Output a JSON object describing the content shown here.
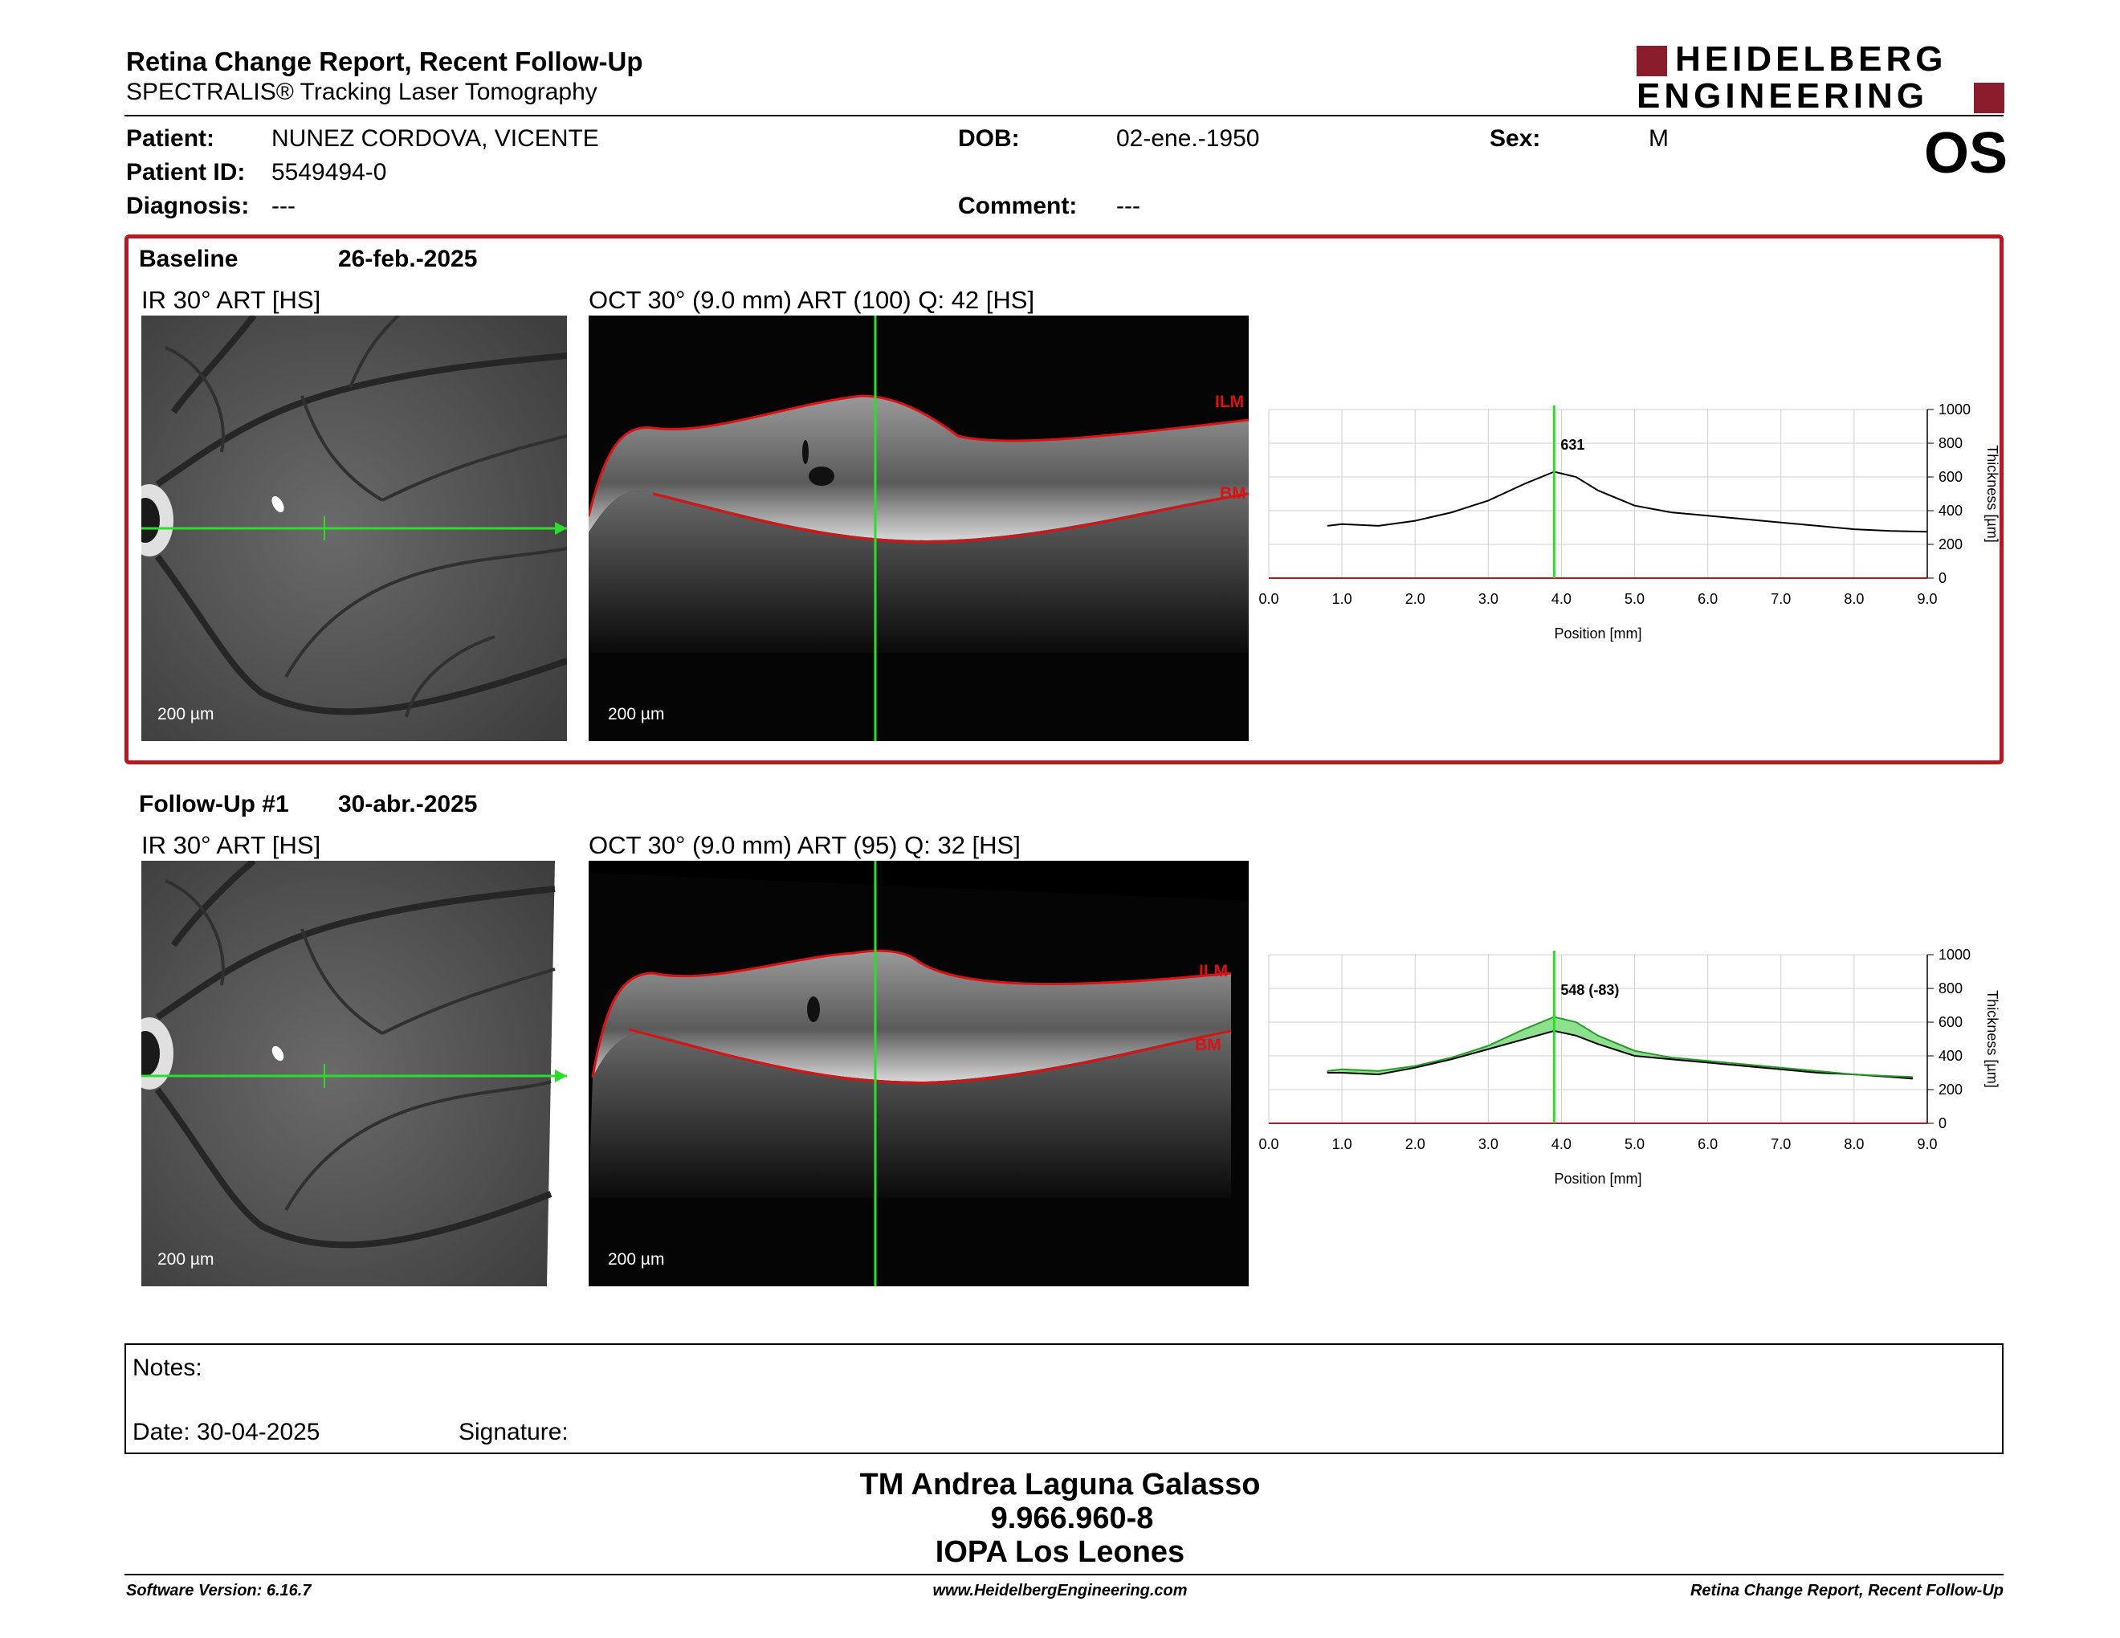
{
  "header": {
    "title": "Retina Change Report, Recent Follow-Up",
    "subtitle": "SPECTRALIS® Tracking Laser Tomography",
    "logo_line1": "HEIDELBERG",
    "logo_line2": "ENGINEERING",
    "brand_color": "#8a1c2b",
    "eye": "OS"
  },
  "patient": {
    "patient_label": "Patient:",
    "patient_value": "NUNEZ CORDOVA, VICENTE",
    "id_label": "Patient ID:",
    "id_value": "5549494-0",
    "diag_label": "Diagnosis:",
    "diag_value": "---",
    "dob_label": "DOB:",
    "dob_value": "02-ene.-1950",
    "comment_label": "Comment:",
    "comment_value": "---",
    "sex_label": "Sex:",
    "sex_value": "M"
  },
  "baseline": {
    "label": "Baseline",
    "date": "26-feb.-2025",
    "ir_label": "IR 30° ART [HS]",
    "oct_label": "OCT 30° (9.0 mm) ART (100) Q: 42 [HS]",
    "scale": "200 µm",
    "ilm": "ILM",
    "bm": "BM",
    "highlight_color": "#c0151d"
  },
  "followup": {
    "label": "Follow-Up #1",
    "date": "30-abr.-2025",
    "ir_label": "IR 30° ART [HS]",
    "oct_label": "OCT 30° (9.0 mm) ART (95) Q: 32 [HS]",
    "scale": "200 µm",
    "ilm": "ILM",
    "bm": "BM"
  },
  "chart_data": [
    {
      "type": "line",
      "xlabel": "Position [mm]",
      "ylabel": "Thickness [µm]",
      "xlim": [
        0,
        9
      ],
      "ylim": [
        0,
        1000
      ],
      "xticks": [
        "0.0",
        "1.0",
        "2.0",
        "3.0",
        "4.0",
        "5.0",
        "6.0",
        "7.0",
        "8.0",
        "9.0"
      ],
      "yticks": [
        "0",
        "200",
        "400",
        "600",
        "800",
        "1000"
      ],
      "marker_x": 3.9,
      "marker_label": "631",
      "series": [
        {
          "x": [
            0.8,
            1.0,
            1.5,
            2.0,
            2.5,
            3.0,
            3.5,
            3.9,
            4.2,
            4.5,
            5.0,
            5.5,
            6.0,
            6.5,
            7.0,
            7.5,
            8.0,
            8.5,
            9.0
          ],
          "values": [
            310,
            320,
            310,
            340,
            390,
            460,
            560,
            631,
            600,
            520,
            430,
            390,
            370,
            350,
            330,
            310,
            290,
            280,
            275
          ]
        }
      ]
    },
    {
      "type": "area",
      "xlabel": "Position [mm]",
      "ylabel": "Thickness [µm]",
      "xlim": [
        0,
        9
      ],
      "ylim": [
        0,
        1000
      ],
      "xticks": [
        "0.0",
        "1.0",
        "2.0",
        "3.0",
        "4.0",
        "5.0",
        "6.0",
        "7.0",
        "8.0",
        "9.0"
      ],
      "yticks": [
        "0",
        "200",
        "400",
        "600",
        "800",
        "1000"
      ],
      "marker_x": 3.9,
      "marker_label": "548 (-83)",
      "fill_color": "#8de08d",
      "series": [
        {
          "x": [
            0.8,
            1.0,
            1.5,
            2.0,
            2.5,
            3.0,
            3.5,
            3.9,
            4.2,
            4.5,
            5.0,
            5.5,
            6.0,
            6.5,
            7.0,
            7.5,
            8.0,
            8.5,
            8.8
          ],
          "values": [
            300,
            300,
            290,
            330,
            380,
            440,
            500,
            548,
            520,
            470,
            400,
            380,
            360,
            340,
            320,
            300,
            290,
            275,
            265
          ]
        },
        {
          "x": [
            0.8,
            1.0,
            1.5,
            2.0,
            2.5,
            3.0,
            3.5,
            3.9,
            4.2,
            4.5,
            5.0,
            5.5,
            6.0,
            6.5,
            7.0,
            7.5,
            8.0,
            8.5,
            8.8
          ],
          "values": [
            310,
            320,
            310,
            340,
            390,
            460,
            560,
            631,
            600,
            520,
            430,
            390,
            370,
            350,
            330,
            310,
            290,
            280,
            275
          ]
        }
      ]
    }
  ],
  "notes": {
    "notes_label": "Notes:",
    "date_label": "Date: 30-04-2025",
    "signature_label": "Signature:"
  },
  "signer": {
    "name": "TM Andrea Laguna Galasso",
    "id": "9.966.960-8",
    "org": "IOPA Los Leones"
  },
  "footer": {
    "version": "Software Version: 6.16.7",
    "url": "www.HeidelbergEngineering.com",
    "report": "Retina Change Report, Recent Follow-Up"
  }
}
